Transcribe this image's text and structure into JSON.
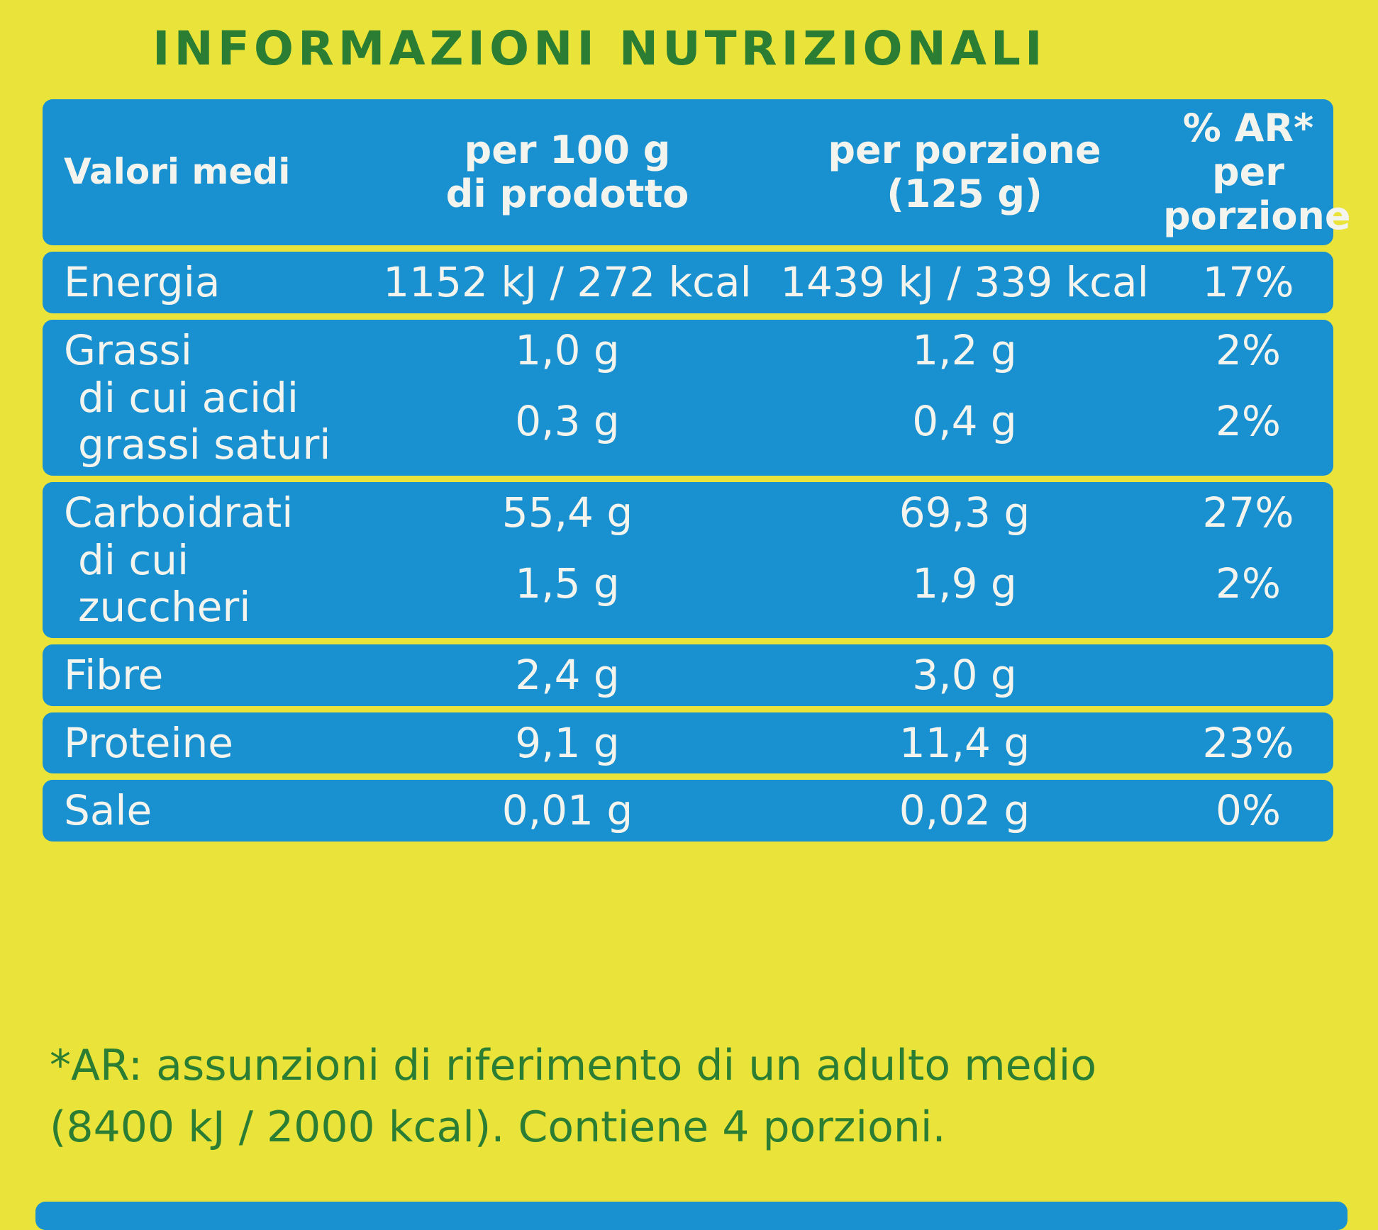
{
  "title": "INFORMAZIONI NUTRIZIONALI",
  "table": {
    "header": [
      "Valori medi",
      "per 100 g\ndi prodotto",
      "per porzione\n(125 g)",
      "% AR*\nper porzione"
    ],
    "groups": [
      [
        {
          "label": "Energia",
          "per_100g": "1152 kJ / 272 kcal",
          "per_portion": "1439 kJ / 339 kcal",
          "ar": "17%"
        }
      ],
      [
        {
          "label": "Grassi",
          "per_100g": "1,0 g",
          "per_portion": "1,2 g",
          "ar": "2%"
        },
        {
          "label": "di cui acidi\ngrassi saturi",
          "per_100g": "0,3 g",
          "per_portion": "0,4 g",
          "ar": "2%"
        }
      ],
      [
        {
          "label": "Carboidrati",
          "per_100g": "55,4 g",
          "per_portion": "69,3 g",
          "ar": "27%"
        },
        {
          "label": "di cui zuccheri",
          "per_100g": "1,5 g",
          "per_portion": "1,9 g",
          "ar": "2%"
        }
      ],
      [
        {
          "label": "Fibre",
          "per_100g": "2,4 g",
          "per_portion": "3,0 g"
        }
      ],
      [
        {
          "label": "Proteine",
          "per_100g": "9,1 g",
          "per_portion": "11,4 g",
          "ar": "23%"
        }
      ],
      [
        {
          "label": "Sale",
          "per_100g": "0,01 g",
          "per_portion": "0,02 g",
          "ar": "0%"
        }
      ]
    ]
  },
  "footnote": [
    "*AR: assunzioni di riferimento di un adulto medio",
    "(8400 kJ / 2000 kcal). Contiene 4 porzioni."
  ]
}
